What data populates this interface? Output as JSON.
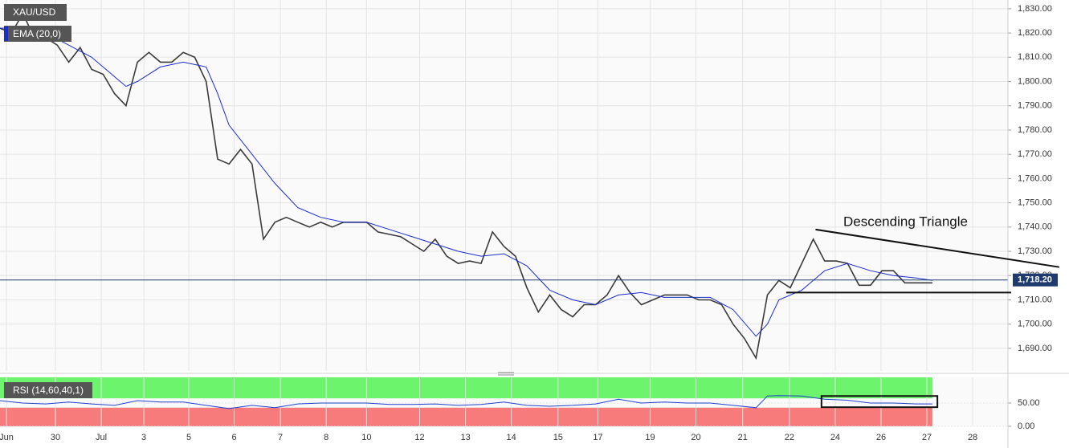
{
  "chart_data": [
    {
      "type": "line",
      "annotation": "Descending Triangle",
      "xlim": [
        0,
        22
      ],
      "xticks": [
        {
          "value": 0.14,
          "label": "Jun"
        },
        {
          "value": 1.21,
          "label": "30"
        },
        {
          "value": 2.21,
          "label": "Jul"
        },
        {
          "value": 3.14,
          "label": "3"
        },
        {
          "value": 4.12,
          "label": "5"
        },
        {
          "value": 5.11,
          "label": "6"
        },
        {
          "value": 6.12,
          "label": "7"
        },
        {
          "value": 7.12,
          "label": "8"
        },
        {
          "value": 8.0,
          "label": "10"
        },
        {
          "value": 9.16,
          "label": "12"
        },
        {
          "value": 10.16,
          "label": "13"
        },
        {
          "value": 11.16,
          "label": "14"
        },
        {
          "value": 12.18,
          "label": "15"
        },
        {
          "value": 13.05,
          "label": "17"
        },
        {
          "value": 14.19,
          "label": "19"
        },
        {
          "value": 15.19,
          "label": "20"
        },
        {
          "value": 16.21,
          "label": "21"
        },
        {
          "value": 17.23,
          "label": "22"
        },
        {
          "value": 18.23,
          "label": "24"
        },
        {
          "value": 19.23,
          "label": "26"
        },
        {
          "value": 20.23,
          "label": "27"
        },
        {
          "value": 21.23,
          "label": "28"
        }
      ],
      "ylim": [
        1680.7,
        1833.6
      ],
      "yticks": [
        {
          "value": 1690,
          "label": "1,690.00"
        },
        {
          "value": 1700,
          "label": "1,700.00"
        },
        {
          "value": 1710,
          "label": "1,710.00"
        },
        {
          "value": 1720,
          "label": "1,720.00"
        },
        {
          "value": 1730,
          "label": "1,730.00"
        },
        {
          "value": 1740,
          "label": "1,740.00"
        },
        {
          "value": 1750,
          "label": "1,750.00"
        },
        {
          "value": 1760,
          "label": "1,760.00"
        },
        {
          "value": 1770,
          "label": "1,770.00"
        },
        {
          "value": 1780,
          "label": "1,780.00"
        },
        {
          "value": 1790,
          "label": "1,790.00"
        },
        {
          "value": 1800,
          "label": "1,800.00"
        },
        {
          "value": 1810,
          "label": "1,810.00"
        },
        {
          "value": 1820,
          "label": "1,820.00"
        },
        {
          "value": 1830,
          "label": "1,830.00"
        }
      ],
      "grid": true,
      "last_price": {
        "value": 1718.2,
        "label": "1,718.20",
        "color": "#1f3a6e"
      },
      "trendlines": [
        {
          "x": [
            17.8,
            23.12
          ],
          "y": [
            1739,
            1723.5
          ]
        },
        {
          "x": [
            17.16,
            22.07
          ],
          "y": [
            1713,
            1713
          ]
        }
      ],
      "series": [
        {
          "name": "XAU/USD",
          "color": "#3a3a3a",
          "x": [
            0,
            0.25,
            0.5,
            0.75,
            1.0,
            1.25,
            1.5,
            1.75,
            2.0,
            2.25,
            2.5,
            2.75,
            3.0,
            3.25,
            3.5,
            3.75,
            4.0,
            4.25,
            4.5,
            4.75,
            5.0,
            5.25,
            5.5,
            5.75,
            6.0,
            6.25,
            6.5,
            6.75,
            7.0,
            7.25,
            7.5,
            7.75,
            8.0,
            8.25,
            8.5,
            8.75,
            9.0,
            9.25,
            9.5,
            9.75,
            10.0,
            10.25,
            10.5,
            10.75,
            11.0,
            11.25,
            11.5,
            11.75,
            12.0,
            12.25,
            12.5,
            12.75,
            13.0,
            13.25,
            13.5,
            13.75,
            14.0,
            14.25,
            14.5,
            14.75,
            15.0,
            15.25,
            15.5,
            15.75,
            16.0,
            16.25,
            16.5,
            16.75,
            17.0,
            17.25,
            17.5,
            17.75,
            18.0,
            18.25,
            18.5,
            18.75,
            19.0,
            19.25,
            19.5,
            19.75,
            20.0,
            20.25,
            20.35
          ],
          "values": [
            1822,
            1820,
            1828,
            1818,
            1818,
            1815,
            1808,
            1814,
            1805,
            1803,
            1795,
            1790,
            1808,
            1812,
            1808,
            1808,
            1812,
            1810,
            1800,
            1768,
            1766,
            1772,
            1766,
            1735,
            1742,
            1744,
            1742,
            1740,
            1742,
            1740,
            1742,
            1742,
            1742,
            1738,
            1737,
            1736,
            1733,
            1730,
            1735,
            1728,
            1725,
            1726,
            1725,
            1738,
            1732,
            1728,
            1715,
            1705,
            1712,
            1706,
            1703,
            1708,
            1708,
            1712,
            1720,
            1713,
            1708,
            1710,
            1712,
            1712,
            1712,
            1710,
            1710,
            1708,
            1700,
            1694,
            1686,
            1712,
            1718,
            1715,
            1725,
            1735,
            1726,
            1726,
            1725,
            1716,
            1716,
            1722,
            1722,
            1717,
            1717,
            1717,
            1717
          ]
        },
        {
          "name": "EMA (20,0)",
          "color": "#1a2ccc",
          "x": [
            0,
            0.5,
            1,
            1.5,
            2,
            2.5,
            2.75,
            3,
            3.5,
            4,
            4.5,
            4.75,
            5,
            5.5,
            6,
            6.5,
            7,
            7.5,
            8,
            8.5,
            9,
            9.5,
            10,
            10.5,
            11,
            11.5,
            12,
            12.5,
            13,
            13.5,
            14,
            14.5,
            15,
            15.5,
            16,
            16.5,
            16.75,
            17,
            17.5,
            18,
            18.5,
            19,
            19.5,
            20,
            20.35
          ],
          "values": [
            1822,
            1822,
            1820,
            1815,
            1810,
            1802,
            1798,
            1800,
            1806,
            1808,
            1806,
            1795,
            1782,
            1770,
            1758,
            1748,
            1744,
            1742,
            1742,
            1739,
            1736,
            1733,
            1730,
            1728,
            1729,
            1724,
            1714,
            1710,
            1708,
            1712,
            1713,
            1711,
            1711,
            1711,
            1706,
            1695,
            1700,
            1710,
            1714,
            1722,
            1725,
            1722,
            1720,
            1719,
            1718
          ]
        }
      ]
    },
    {
      "type": "line",
      "xlim": [
        0,
        22
      ],
      "ylim": [
        0,
        105
      ],
      "yticks": [
        {
          "value": 0,
          "label": "0.00"
        },
        {
          "value": 50,
          "label": "50.00"
        }
      ],
      "upper": 60,
      "upper_color": "#6cf56c",
      "lower": 40,
      "lower_color": "#f77b7b",
      "box": {
        "x": [
          17.93,
          20.46
        ],
        "y": [
          41,
          65
        ]
      },
      "series": [
        {
          "name": "RSI (14,60,40,1)",
          "color": "#2040d0",
          "x": [
            0,
            0.5,
            1,
            1.5,
            2,
            2.5,
            3,
            3.5,
            4,
            4.5,
            5,
            5.5,
            6,
            6.5,
            7,
            7.5,
            8,
            8.5,
            9,
            9.5,
            10,
            10.5,
            11,
            11.5,
            12,
            12.5,
            13,
            13.5,
            14,
            14.5,
            15,
            15.5,
            16,
            16.5,
            16.75,
            17,
            17.5,
            18,
            18.5,
            19,
            19.5,
            20,
            20.35
          ],
          "values": [
            55,
            50,
            48,
            52,
            48,
            45,
            55,
            52,
            52,
            45,
            38,
            45,
            40,
            48,
            50,
            50,
            50,
            47,
            47,
            48,
            45,
            47,
            52,
            45,
            43,
            45,
            48,
            58,
            50,
            52,
            50,
            50,
            45,
            40,
            65,
            66,
            65,
            58,
            56,
            50,
            50,
            48,
            48
          ]
        }
      ]
    }
  ]
}
